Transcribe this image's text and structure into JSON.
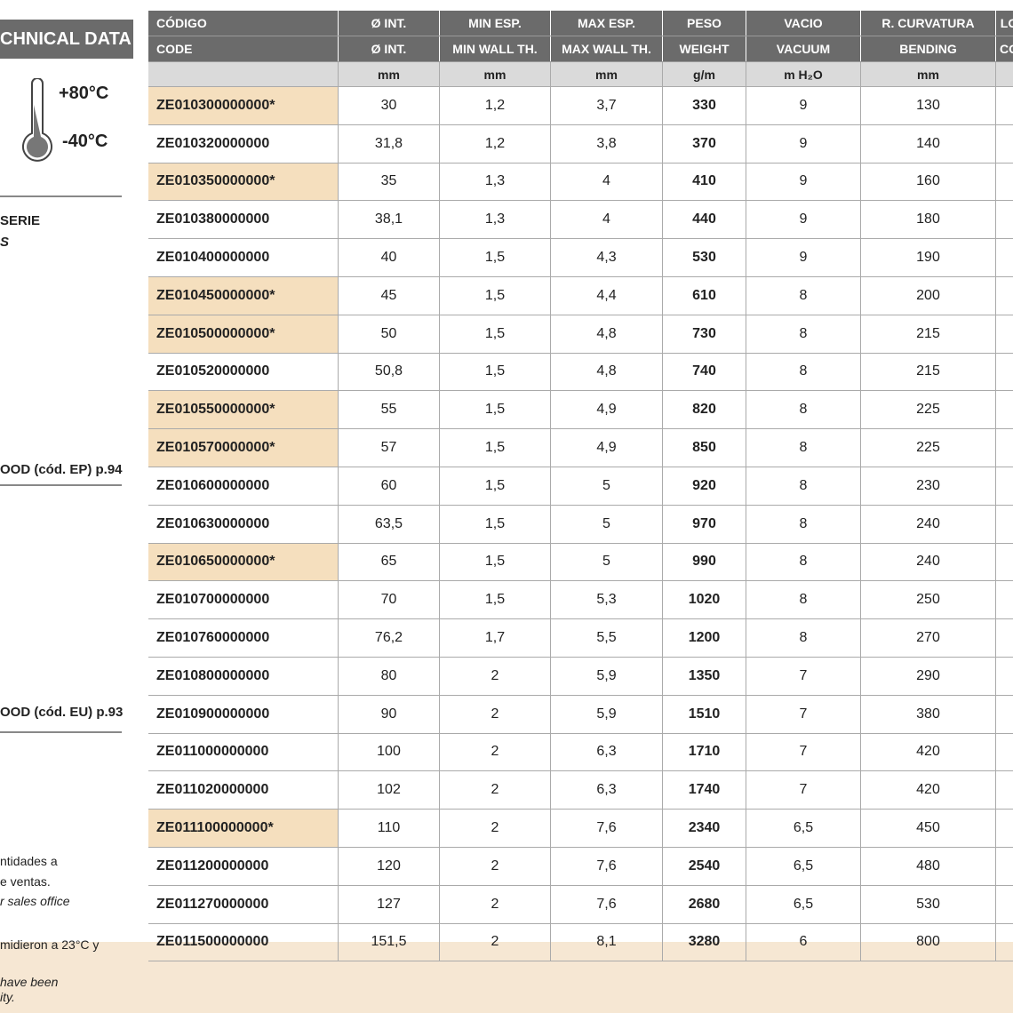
{
  "sidebar": {
    "title": "CHNICAL DATA",
    "temp_max": "+80°C",
    "temp_min": "-40°C",
    "series_lines": [
      "SERIE",
      "S"
    ],
    "links": [
      "OOD (cód. EP) p.94",
      "OOD (cód. EU) p.93"
    ],
    "notes": [
      "ntidades a",
      "e ventas.",
      "r sales office",
      "midieron a 23°C y",
      "have been",
      "ity."
    ]
  },
  "table": {
    "header_es": [
      "CÓDIGO",
      "Ø INT.",
      "MIN ESP.",
      "MAX ESP.",
      "PESO",
      "VACIO",
      "R. CURVATURA",
      "LO"
    ],
    "header_en": [
      "CODE",
      "Ø INT.",
      "MIN WALL TH.",
      "MAX WALL TH.",
      "WEIGHT",
      "VACUUM",
      "BENDING",
      "CO"
    ],
    "units": [
      "mm",
      "mm",
      "mm",
      "g/m",
      "m H₂O",
      "mm"
    ],
    "rows": [
      {
        "code": "ZE010300000000*",
        "highlight": true,
        "values": [
          "30",
          "1,2",
          "3,7",
          "330",
          "9",
          "130"
        ]
      },
      {
        "code": "ZE010320000000",
        "highlight": false,
        "values": [
          "31,8",
          "1,2",
          "3,8",
          "370",
          "9",
          "140"
        ]
      },
      {
        "code": "ZE010350000000*",
        "highlight": true,
        "values": [
          "35",
          "1,3",
          "4",
          "410",
          "9",
          "160"
        ]
      },
      {
        "code": "ZE010380000000",
        "highlight": false,
        "values": [
          "38,1",
          "1,3",
          "4",
          "440",
          "9",
          "180"
        ]
      },
      {
        "code": "ZE010400000000",
        "highlight": false,
        "values": [
          "40",
          "1,5",
          "4,3",
          "530",
          "9",
          "190"
        ]
      },
      {
        "code": "ZE010450000000*",
        "highlight": true,
        "values": [
          "45",
          "1,5",
          "4,4",
          "610",
          "8",
          "200"
        ]
      },
      {
        "code": "ZE010500000000*",
        "highlight": true,
        "values": [
          "50",
          "1,5",
          "4,8",
          "730",
          "8",
          "215"
        ]
      },
      {
        "code": "ZE010520000000",
        "highlight": false,
        "values": [
          "50,8",
          "1,5",
          "4,8",
          "740",
          "8",
          "215"
        ]
      },
      {
        "code": "ZE010550000000*",
        "highlight": true,
        "values": [
          "55",
          "1,5",
          "4,9",
          "820",
          "8",
          "225"
        ]
      },
      {
        "code": "ZE010570000000*",
        "highlight": true,
        "values": [
          "57",
          "1,5",
          "4,9",
          "850",
          "8",
          "225"
        ]
      },
      {
        "code": "ZE010600000000",
        "highlight": false,
        "values": [
          "60",
          "1,5",
          "5",
          "920",
          "8",
          "230"
        ]
      },
      {
        "code": "ZE010630000000",
        "highlight": false,
        "values": [
          "63,5",
          "1,5",
          "5",
          "970",
          "8",
          "240"
        ]
      },
      {
        "code": "ZE010650000000*",
        "highlight": true,
        "values": [
          "65",
          "1,5",
          "5",
          "990",
          "8",
          "240"
        ]
      },
      {
        "code": "ZE010700000000",
        "highlight": false,
        "values": [
          "70",
          "1,5",
          "5,3",
          "1020",
          "8",
          "250"
        ]
      },
      {
        "code": "ZE010760000000",
        "highlight": false,
        "values": [
          "76,2",
          "1,7",
          "5,5",
          "1200",
          "8",
          "270"
        ]
      },
      {
        "code": "ZE010800000000",
        "highlight": false,
        "values": [
          "80",
          "2",
          "5,9",
          "1350",
          "7",
          "290"
        ]
      },
      {
        "code": "ZE010900000000",
        "highlight": false,
        "values": [
          "90",
          "2",
          "5,9",
          "1510",
          "7",
          "380"
        ]
      },
      {
        "code": "ZE011000000000",
        "highlight": false,
        "values": [
          "100",
          "2",
          "6,3",
          "1710",
          "7",
          "420"
        ]
      },
      {
        "code": "ZE011020000000",
        "highlight": false,
        "values": [
          "102",
          "2",
          "6,3",
          "1740",
          "7",
          "420"
        ]
      },
      {
        "code": "ZE011100000000*",
        "highlight": true,
        "values": [
          "110",
          "2",
          "7,6",
          "2340",
          "6,5",
          "450"
        ]
      },
      {
        "code": "ZE011200000000",
        "highlight": false,
        "values": [
          "120",
          "2",
          "7,6",
          "2540",
          "6,5",
          "480"
        ]
      },
      {
        "code": "ZE011270000000",
        "highlight": false,
        "values": [
          "127",
          "2",
          "7,6",
          "2680",
          "6,5",
          "530"
        ]
      },
      {
        "code": "ZE011500000000",
        "highlight": false,
        "values": [
          "151,5",
          "2",
          "8,1",
          "3280",
          "6",
          "800"
        ]
      }
    ]
  }
}
